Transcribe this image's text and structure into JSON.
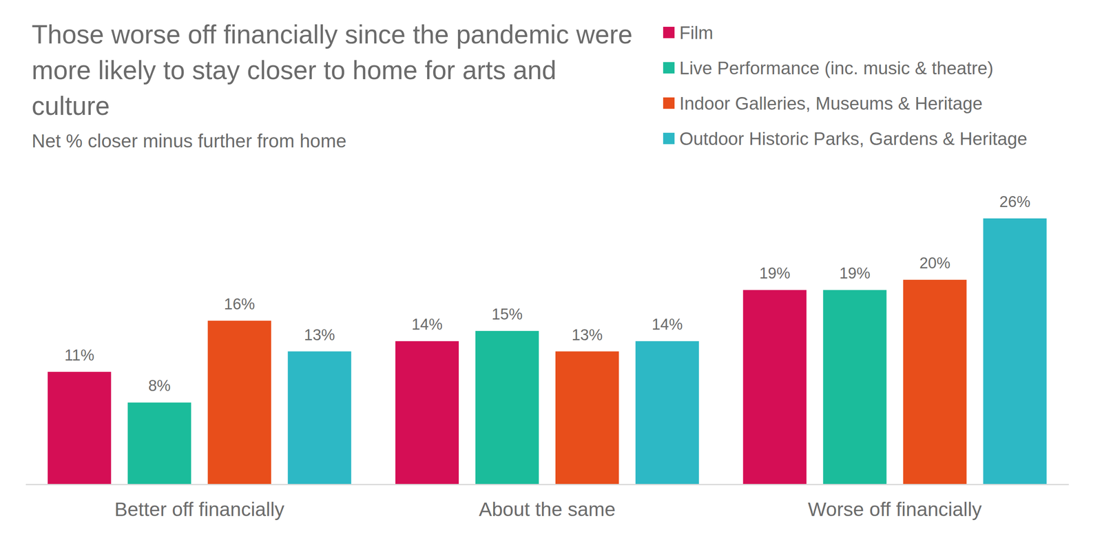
{
  "chart_data": {
    "type": "bar",
    "title": "Those worse off financially since the pandemic were more likely to stay closer to home for arts and culture",
    "subtitle": "Net % closer minus further from home",
    "categories": [
      "Better off financially",
      "About the same",
      "Worse off financially"
    ],
    "series": [
      {
        "name": "Film",
        "color": "#d50e55",
        "values": [
          11,
          14,
          19
        ],
        "value_labels": [
          "11%",
          "14%",
          "19%"
        ]
      },
      {
        "name": "Live Performance (inc. music & theatre)",
        "color": "#1bbc9b",
        "values": [
          8,
          15,
          19
        ],
        "value_labels": [
          "8%",
          "15%",
          "19%"
        ]
      },
      {
        "name": "Indoor Galleries, Museums & Heritage",
        "color": "#e84e1b",
        "values": [
          16,
          13,
          20
        ],
        "value_labels": [
          "16%",
          "13%",
          "20%"
        ]
      },
      {
        "name": "Outdoor Historic Parks, Gardens & Heritage",
        "color": "#2db8c5",
        "values": [
          13,
          14,
          26
        ],
        "value_labels": [
          "13%",
          "14%",
          "26%"
        ]
      }
    ],
    "ylim": [
      0,
      26
    ],
    "grid": false,
    "legend": "top-right",
    "data_labels": true,
    "tick_labels": "x"
  }
}
